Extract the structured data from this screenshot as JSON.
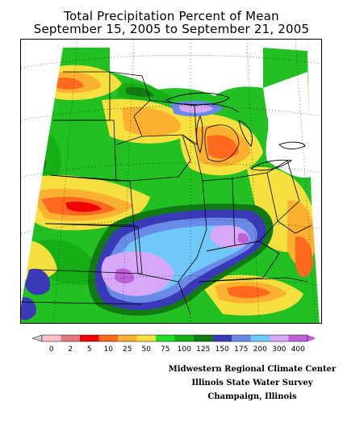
{
  "title": {
    "line1": "Total Precipitation Percent of Mean",
    "line2": "September 15, 2005 to September 21, 2005"
  },
  "legend": {
    "labels": [
      "0",
      "2",
      "5",
      "10",
      "25",
      "50",
      "75",
      "100",
      "125",
      "150",
      "175",
      "200",
      "300",
      "400"
    ],
    "colors": [
      "#ffc0cb",
      "#e07a80",
      "#f00000",
      "#ff6a1e",
      "#fbb030",
      "#f5e040",
      "#22e022",
      "#16b016",
      "#127a12",
      "#3a3ab8",
      "#6a8ae8",
      "#70c8f8",
      "#d8a8f8",
      "#c060d8"
    ],
    "low_cap_color": "#d0d0d0"
  },
  "map": {
    "background_color": "#22c022",
    "no_data_color": "#ffffff",
    "region": "Midwest United States"
  },
  "credits": {
    "line1": "Midwestern Regional Climate Center",
    "line2": "Illinois State Water Survey",
    "line3": "Champaign, Illinois"
  }
}
